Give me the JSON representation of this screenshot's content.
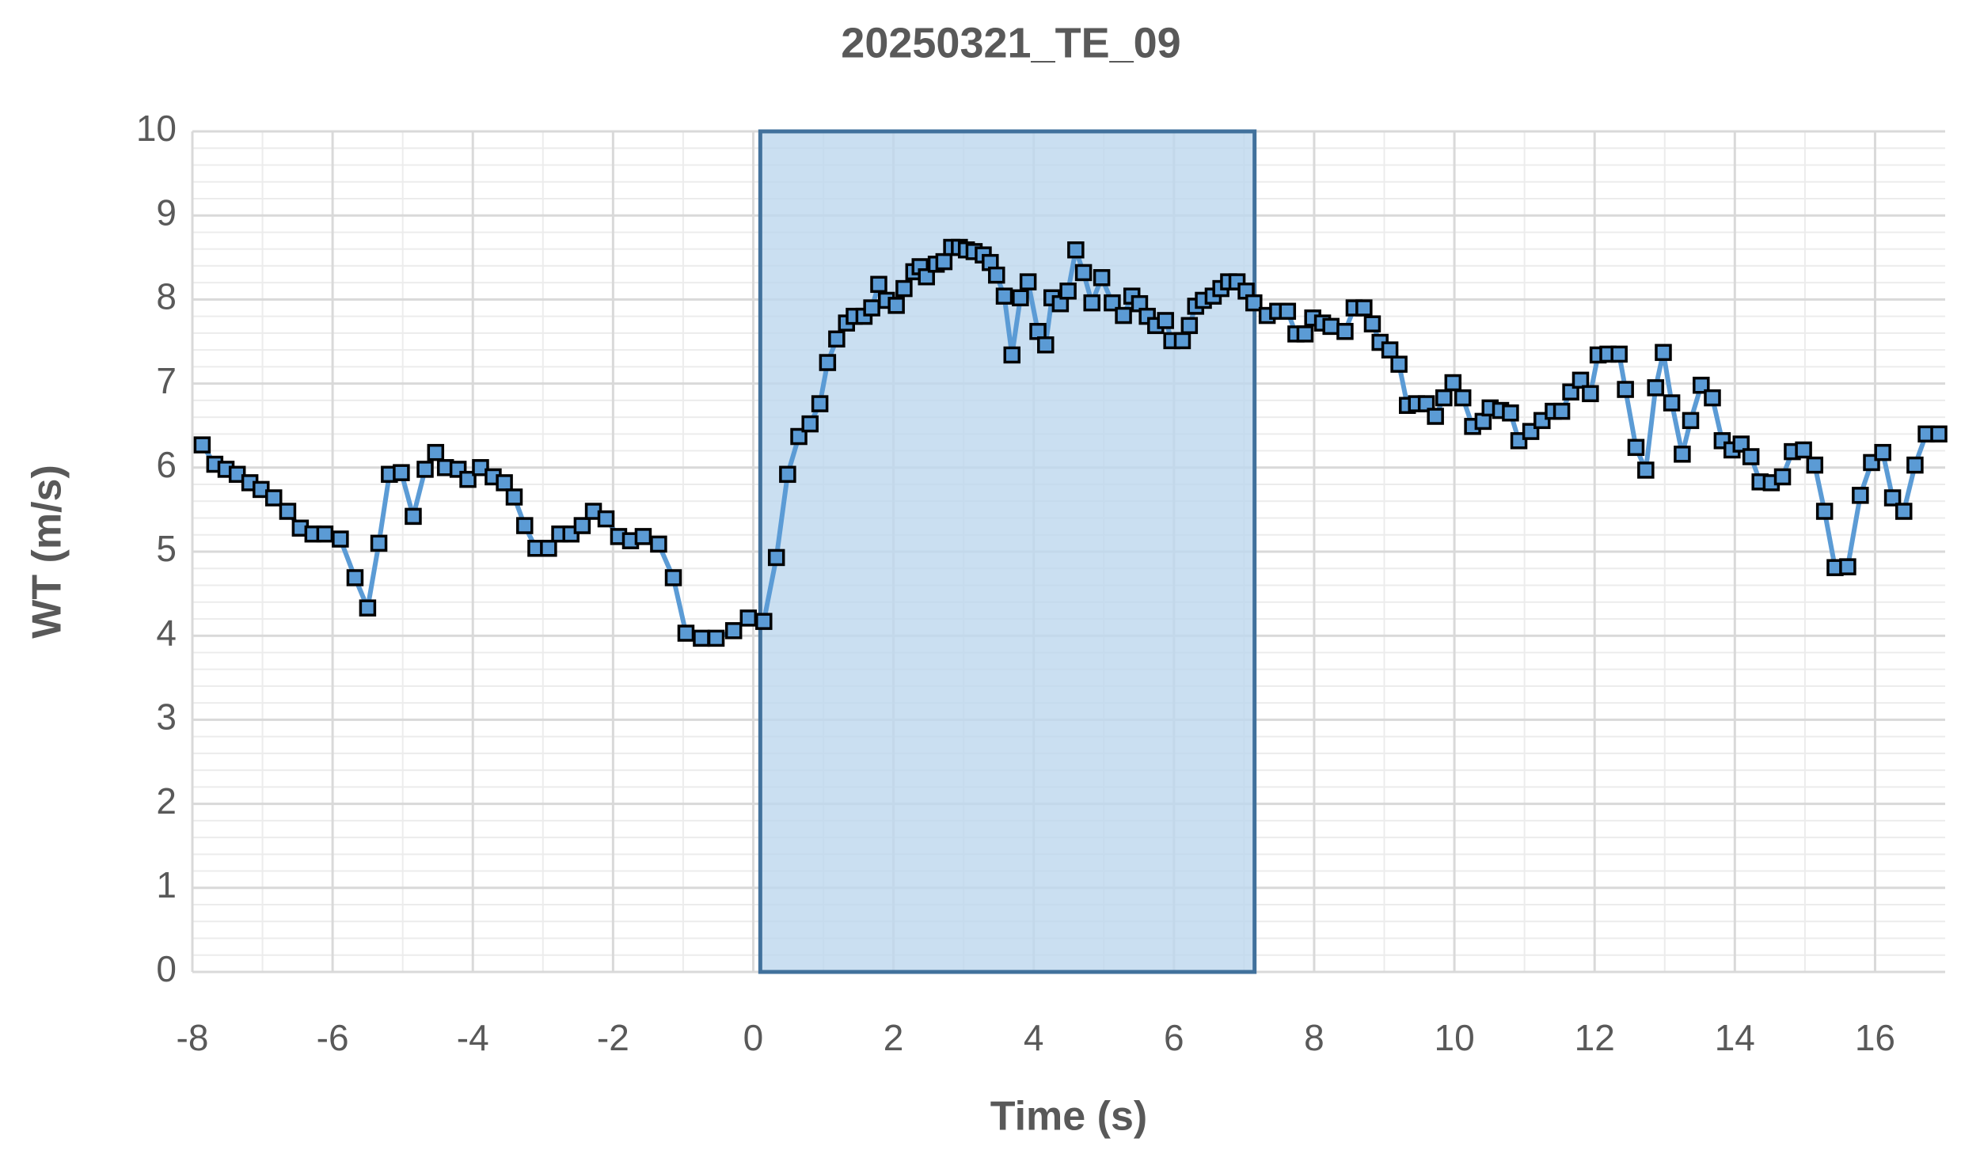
{
  "chart_data": {
    "type": "line",
    "title": "20250321_TE_09",
    "x_label": "Time (s)",
    "y_label": "WT (m/s)",
    "xlim": [
      -8,
      17
    ],
    "xticks": [
      -8,
      -6,
      -4,
      -2,
      0,
      2,
      4,
      6,
      8,
      10,
      12,
      14,
      16
    ],
    "ylim": [
      0,
      10
    ],
    "yticks": [
      0,
      1,
      2,
      3,
      4,
      5,
      6,
      7,
      8,
      9,
      10
    ],
    "grid": true,
    "minor_divisions": [
      2,
      5
    ],
    "highlight_x": [
      0.1,
      7.15
    ],
    "highlight_color": "#bdd7ee",
    "highlight_edge": "#41719c",
    "markers": "square",
    "series": [
      {
        "name": "WT",
        "color": "#5b9bd5",
        "x": [
          -7.86,
          -7.68,
          -7.52,
          -7.36,
          -7.18,
          -7.02,
          -6.84,
          -6.64,
          -6.46,
          -6.28,
          -6.11,
          -5.89,
          -5.68,
          -5.5,
          -5.34,
          -5.19,
          -5.02,
          -4.85,
          -4.68,
          -4.53,
          -4.39,
          -4.21,
          -4.07,
          -3.89,
          -3.71,
          -3.55,
          -3.41,
          -3.26,
          -3.1,
          -2.92,
          -2.76,
          -2.6,
          -2.44,
          -2.28,
          -2.1,
          -1.92,
          -1.75,
          -1.57,
          -1.35,
          -1.14,
          -0.96,
          -0.74,
          -0.53,
          -0.28,
          -0.07,
          0.15,
          0.33,
          0.49,
          0.65,
          0.81,
          0.95,
          1.06,
          1.19,
          1.33,
          1.44,
          1.58,
          1.69,
          1.79,
          1.9,
          2.04,
          2.15,
          2.29,
          2.38,
          2.47,
          2.61,
          2.72,
          2.83,
          2.94,
          3.04,
          3.15,
          3.28,
          3.38,
          3.47,
          3.58,
          3.69,
          3.81,
          3.92,
          4.06,
          4.17,
          4.26,
          4.38,
          4.49,
          4.6,
          4.71,
          4.83,
          4.97,
          5.12,
          5.28,
          5.4,
          5.51,
          5.62,
          5.74,
          5.88,
          5.97,
          6.12,
          6.22,
          6.31,
          6.42,
          6.56,
          6.67,
          6.78,
          6.9,
          7.03,
          7.14,
          7.33,
          7.48,
          7.62,
          7.74,
          7.87,
          7.98,
          8.12,
          8.24,
          8.44,
          8.57,
          8.71,
          8.83,
          8.94,
          9.08,
          9.21,
          9.33,
          9.46,
          9.6,
          9.73,
          9.85,
          9.98,
          10.12,
          10.26,
          10.41,
          10.51,
          10.66,
          10.8,
          10.92,
          11.09,
          11.25,
          11.41,
          11.53,
          11.66,
          11.8,
          11.94,
          12.05,
          12.19,
          12.35,
          12.44,
          12.59,
          12.73,
          12.87,
          12.98,
          13.1,
          13.25,
          13.37,
          13.52,
          13.68,
          13.82,
          13.96,
          14.09,
          14.23,
          14.36,
          14.52,
          14.68,
          14.82,
          14.98,
          15.14,
          15.28,
          15.43,
          15.61,
          15.79,
          15.95,
          16.11,
          16.25,
          16.41,
          16.57,
          16.73,
          16.91
        ],
        "values": [
          6.27,
          6.04,
          5.98,
          5.92,
          5.82,
          5.74,
          5.64,
          5.48,
          5.28,
          5.21,
          5.21,
          5.15,
          4.69,
          4.33,
          5.1,
          5.92,
          5.94,
          5.42,
          5.98,
          6.18,
          6.0,
          5.98,
          5.86,
          6.0,
          5.89,
          5.82,
          5.65,
          5.31,
          5.04,
          5.04,
          5.21,
          5.21,
          5.31,
          5.48,
          5.39,
          5.18,
          5.13,
          5.18,
          5.09,
          4.69,
          4.03,
          3.97,
          3.97,
          4.06,
          4.21,
          4.17,
          4.93,
          5.92,
          6.37,
          6.52,
          6.76,
          7.25,
          7.53,
          7.72,
          7.8,
          7.8,
          7.9,
          8.18,
          7.99,
          7.93,
          8.13,
          8.33,
          8.39,
          8.27,
          8.42,
          8.45,
          8.62,
          8.62,
          8.59,
          8.57,
          8.53,
          8.44,
          8.29,
          8.04,
          7.34,
          8.02,
          8.21,
          7.62,
          7.46,
          8.02,
          7.95,
          8.1,
          8.59,
          8.32,
          7.96,
          8.26,
          7.96,
          7.81,
          8.04,
          7.95,
          7.8,
          7.69,
          7.75,
          7.51,
          7.51,
          7.69,
          7.92,
          7.99,
          8.04,
          8.13,
          8.21,
          8.21,
          8.1,
          7.96,
          7.81,
          7.86,
          7.86,
          7.59,
          7.59,
          7.78,
          7.72,
          7.68,
          7.62,
          7.9,
          7.9,
          7.71,
          7.49,
          7.4,
          7.23,
          6.74,
          6.76,
          6.76,
          6.61,
          6.83,
          7.01,
          6.83,
          6.49,
          6.55,
          6.71,
          6.68,
          6.65,
          6.32,
          6.43,
          6.56,
          6.67,
          6.67,
          6.9,
          7.04,
          6.88,
          7.34,
          7.35,
          7.35,
          6.93,
          6.24,
          5.97,
          6.95,
          7.37,
          6.77,
          6.16,
          6.56,
          6.98,
          6.83,
          6.32,
          6.21,
          6.28,
          6.13,
          5.83,
          5.82,
          5.89,
          6.19,
          6.21,
          6.03,
          5.48,
          4.81,
          4.82,
          5.67,
          6.06,
          6.18,
          5.64,
          5.48,
          6.03,
          6.4,
          6.4
        ]
      }
    ]
  }
}
